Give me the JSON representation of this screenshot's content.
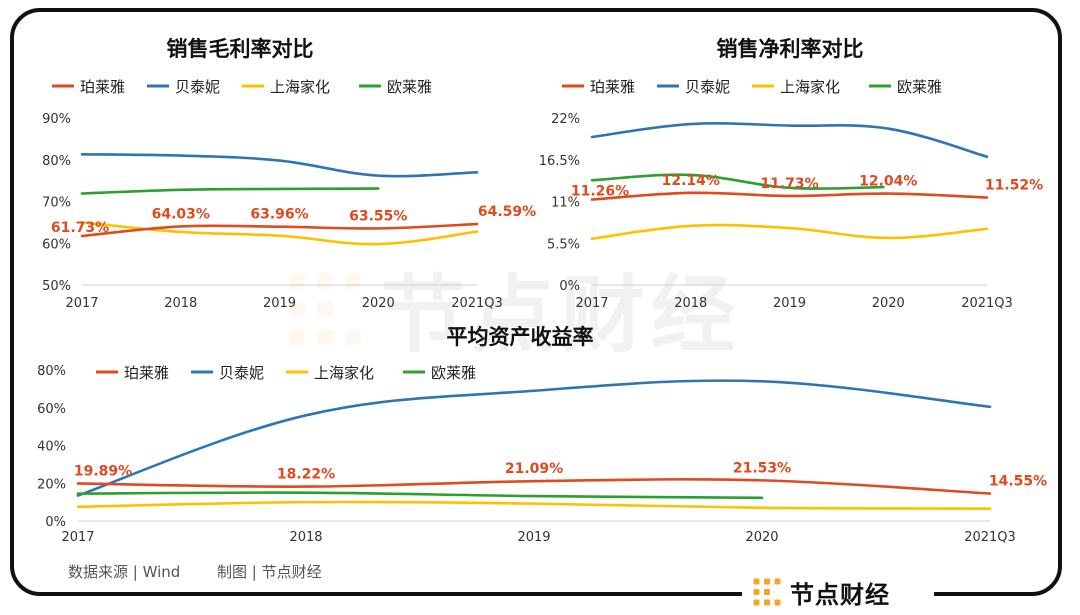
{
  "footer": {
    "source": "数据来源 | Wind",
    "made_by": "制图 | 节点财经"
  },
  "brand": {
    "name": "节点财经",
    "icon": "node-logo-icon",
    "color": "#f5a623"
  },
  "watermark": {
    "text": "节点财经"
  },
  "colors": {
    "珀莱雅": "#e04a1f",
    "贝泰妮": "#2e75b6",
    "上海家化": "#ffc000",
    "欧莱雅": "#2ca02c"
  },
  "chart_data": [
    {
      "id": "gross",
      "type": "line",
      "title": "销售毛利率对比",
      "categories": [
        "2017",
        "2018",
        "2019",
        "2020",
        "2021Q3"
      ],
      "yticks": [
        "50%",
        "60%",
        "70%",
        "80%",
        "90%"
      ],
      "ylim": [
        50,
        90
      ],
      "series": [
        {
          "name": "珀莱雅",
          "values": [
            61.73,
            64.03,
            63.96,
            63.55,
            64.59
          ],
          "labels": [
            "61.73%",
            "64.03%",
            "63.96%",
            "63.55%",
            "64.59%"
          ]
        },
        {
          "name": "贝泰妮",
          "values": [
            81.3,
            81.0,
            79.8,
            76.2,
            77.0
          ]
        },
        {
          "name": "上海家化",
          "values": [
            65.0,
            62.7,
            61.8,
            59.8,
            62.8
          ]
        },
        {
          "name": "欧莱雅",
          "values": [
            71.9,
            72.8,
            73.0,
            73.1,
            null
          ],
          "x_end": 3.0
        }
      ]
    },
    {
      "id": "net",
      "type": "line",
      "title": "销售净利率对比",
      "categories": [
        "2017",
        "2018",
        "2019",
        "2020",
        "2021Q3"
      ],
      "yticks": [
        "0%",
        "5.5%",
        "11%",
        "16.5%",
        "22%"
      ],
      "ylim": [
        0,
        22
      ],
      "series": [
        {
          "name": "珀莱雅",
          "values": [
            11.26,
            12.14,
            11.73,
            12.04,
            11.52
          ],
          "labels": [
            "11.26%",
            "12.14%",
            "11.73%",
            "12.04%",
            "11.52%"
          ]
        },
        {
          "name": "贝泰妮",
          "values": [
            19.5,
            21.2,
            21.0,
            20.6,
            16.9
          ]
        },
        {
          "name": "上海家化",
          "values": [
            6.1,
            7.8,
            7.5,
            6.2,
            7.4
          ]
        },
        {
          "name": "欧莱雅",
          "values": [
            13.8,
            14.5,
            12.8,
            12.9,
            null
          ],
          "x_end": 2.95
        }
      ]
    },
    {
      "id": "roa",
      "type": "line",
      "title": "平均资产收益率",
      "categories": [
        "2017",
        "2018",
        "2019",
        "2020",
        "2021Q3"
      ],
      "yticks": [
        "0%",
        "20%",
        "40%",
        "60%",
        "80%"
      ],
      "ylim": [
        0,
        80
      ],
      "series": [
        {
          "name": "珀莱雅",
          "values": [
            19.89,
            18.22,
            21.09,
            21.53,
            14.55
          ],
          "labels": [
            "19.89%",
            "18.22%",
            "21.09%",
            "21.53%",
            "14.55%"
          ]
        },
        {
          "name": "贝泰妮",
          "values": [
            13.5,
            56.0,
            69.0,
            74.0,
            60.5
          ]
        },
        {
          "name": "上海家化",
          "values": [
            7.5,
            10.0,
            9.2,
            7.0,
            6.5
          ]
        },
        {
          "name": "欧莱雅",
          "values": [
            14.5,
            15.0,
            13.2,
            12.3,
            null
          ],
          "x_end": 3.0
        }
      ]
    }
  ]
}
